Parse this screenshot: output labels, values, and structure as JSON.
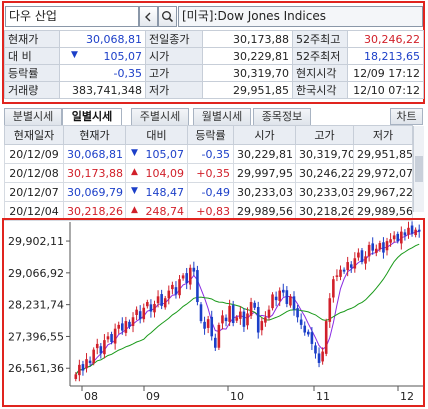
{
  "search": {
    "code": "다우 산업",
    "search_icon": "search-icon",
    "prev_icon": "chevron-left-icon",
    "index_name": "[미국]:Dow Jones Indices"
  },
  "quote": {
    "rows": [
      {
        "l1": "현재가",
        "v1": "30,068,81",
        "l2": "전일종가",
        "v2": "30,173,88",
        "l3": "52주최고",
        "v3": "30,246,22"
      },
      {
        "l1": "대 비",
        "v1": "105,07",
        "l2": "시가",
        "v2": "30,229,81",
        "l3": "52주최저",
        "v3": "18,213,65"
      },
      {
        "l1": "등락률",
        "v1": "-0,35",
        "l2": "고가",
        "v2": "30,319,70",
        "l3": "현지시각",
        "v3": "12/09 17:12"
      },
      {
        "l1": "거래량",
        "v1": "383,741,348",
        "l2": "저가",
        "v2": "29,951,85",
        "l3": "한국시각",
        "v3": "12/10 07:12"
      }
    ],
    "change_arrow": "▼"
  },
  "tabs": [
    "분별시세",
    "일별시세",
    "주별시세",
    "월별시세",
    "종목정보"
  ],
  "active_tab": 1,
  "chart_button": "차트",
  "history": {
    "headers": [
      "현재일자",
      "현재가",
      "대비",
      "등락률",
      "시가",
      "고가",
      "저가"
    ],
    "rows": [
      {
        "date": "20/12/09",
        "price": "30,068,81",
        "arrow": "▼",
        "chg": "105,07",
        "pct": "-0,35",
        "open": "30,229,81",
        "high": "30,319,70",
        "low": "29,951,85",
        "dir": "dn"
      },
      {
        "date": "20/12/08",
        "price": "30,173,88",
        "arrow": "▲",
        "chg": "104,09",
        "pct": "+0,35",
        "open": "29,997,95",
        "high": "30,246,22",
        "low": "29,972,07",
        "dir": "up"
      },
      {
        "date": "20/12/07",
        "price": "30,069,79",
        "arrow": "▼",
        "chg": "148,47",
        "pct": "-0,49",
        "open": "30,233,03",
        "high": "30,233,03",
        "low": "29,967,22",
        "dir": "dn"
      },
      {
        "date": "20/12/04",
        "price": "30,218,26",
        "arrow": "▲",
        "chg": "248,74",
        "pct": "+0,83",
        "open": "29,989,56",
        "high": "30,218,26",
        "low": "29,989,56",
        "dir": "up"
      }
    ]
  },
  "chart_data": {
    "type": "candlestick",
    "y_ticks": [
      "29,902,11",
      "29,066,92",
      "28,231,74",
      "27,396,55",
      "26,561,36"
    ],
    "x_ticks": [
      "08",
      "09",
      "10",
      "11",
      "12"
    ],
    "ylim": [
      26200,
      30350
    ],
    "up_color": "#d1202a",
    "down_color": "#1c3fc8",
    "ma_short_color": "#8a2be2",
    "ma_long_color": "#1a9a1a",
    "closes": [
      26400,
      26650,
      26500,
      26800,
      26700,
      27050,
      27200,
      26950,
      27300,
      27400,
      27250,
      27600,
      27700,
      27550,
      27800,
      27650,
      27900,
      28100,
      27850,
      28150,
      28300,
      28050,
      28250,
      28450,
      28200,
      28400,
      28600,
      28750,
      28500,
      28900,
      29000,
      28800,
      29200,
      29100,
      28300,
      27800,
      27600,
      27850,
      27400,
      27100,
      27700,
      27950,
      27800,
      28200,
      27750,
      27900,
      28050,
      27650,
      28000,
      28300,
      28150,
      27500,
      27800,
      27900,
      28100,
      28500,
      28350,
      28600,
      28550,
      28250,
      28450,
      28100,
      27900,
      27700,
      27500,
      27450,
      27200,
      26950,
      26700,
      27000,
      27800,
      28400,
      28900,
      29000,
      29150,
      29100,
      29350,
      29200,
      29450,
      29600,
      29350,
      29500,
      29800,
      29650,
      29700,
      29850,
      29600,
      29900,
      29950,
      30050,
      29900,
      30150,
      30050,
      30250,
      30100,
      30200,
      30150
    ]
  }
}
